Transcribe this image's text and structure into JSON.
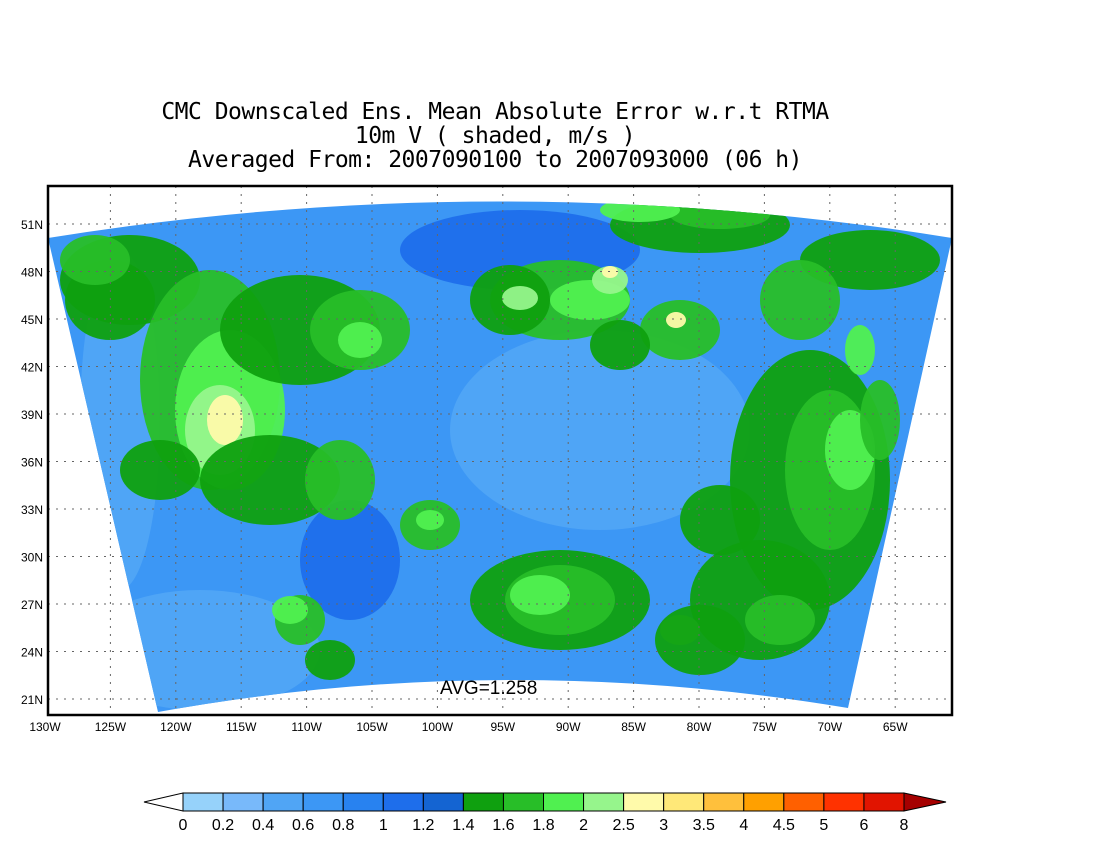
{
  "title": {
    "line1": "CMC Downscaled Ens. Mean Absolute Error w.r.t RTMA",
    "line2": "10m V ( shaded, m/s )",
    "line3": "Averaged From: 2007090100 to 2007093000 (06 h)"
  },
  "map": {
    "avg_label": "AVG=1.258",
    "lat_labels": [
      "51N",
      "48N",
      "45N",
      "42N",
      "39N",
      "36N",
      "33N",
      "30N",
      "27N",
      "24N",
      "21N"
    ],
    "lon_labels": [
      "130W",
      "125W",
      "120W",
      "115W",
      "110W",
      "105W",
      "100W",
      "95W",
      "90W",
      "85W",
      "80W",
      "75W",
      "70W",
      "65W"
    ],
    "grid": "dotted"
  },
  "colorbar": {
    "labels": [
      "0",
      "0.2",
      "0.4",
      "0.6",
      "0.8",
      "1",
      "1.2",
      "1.4",
      "1.6",
      "1.8",
      "2",
      "2.5",
      "3",
      "3.5",
      "4",
      "4.5",
      "5",
      "6",
      "8"
    ],
    "colors": [
      "#ffffff",
      "#96d2fa",
      "#78b9fa",
      "#50a5f5",
      "#3c97f5",
      "#2882f0",
      "#1e6eeb",
      "#1464d2",
      "#0fa00f",
      "#28be28",
      "#50f050",
      "#96f58c",
      "#fffaaa",
      "#ffe878",
      "#ffc03c",
      "#ffa000",
      "#ff6000",
      "#ff3200",
      "#e11400",
      "#a50000"
    ]
  },
  "regions": {
    "background_color": "#3c97f5",
    "colors": {
      "blue_dark": "#1e6eeb",
      "blue_mid": "#2882f0",
      "blue_light": "#50a5f5",
      "green_dark": "#0fa00f",
      "green": "#28be28",
      "green_light": "#50f050",
      "green_pale": "#96f58c",
      "yellow": "#fffaaa",
      "yellow_dark": "#ffe878",
      "orange": "#ffc03c"
    }
  }
}
